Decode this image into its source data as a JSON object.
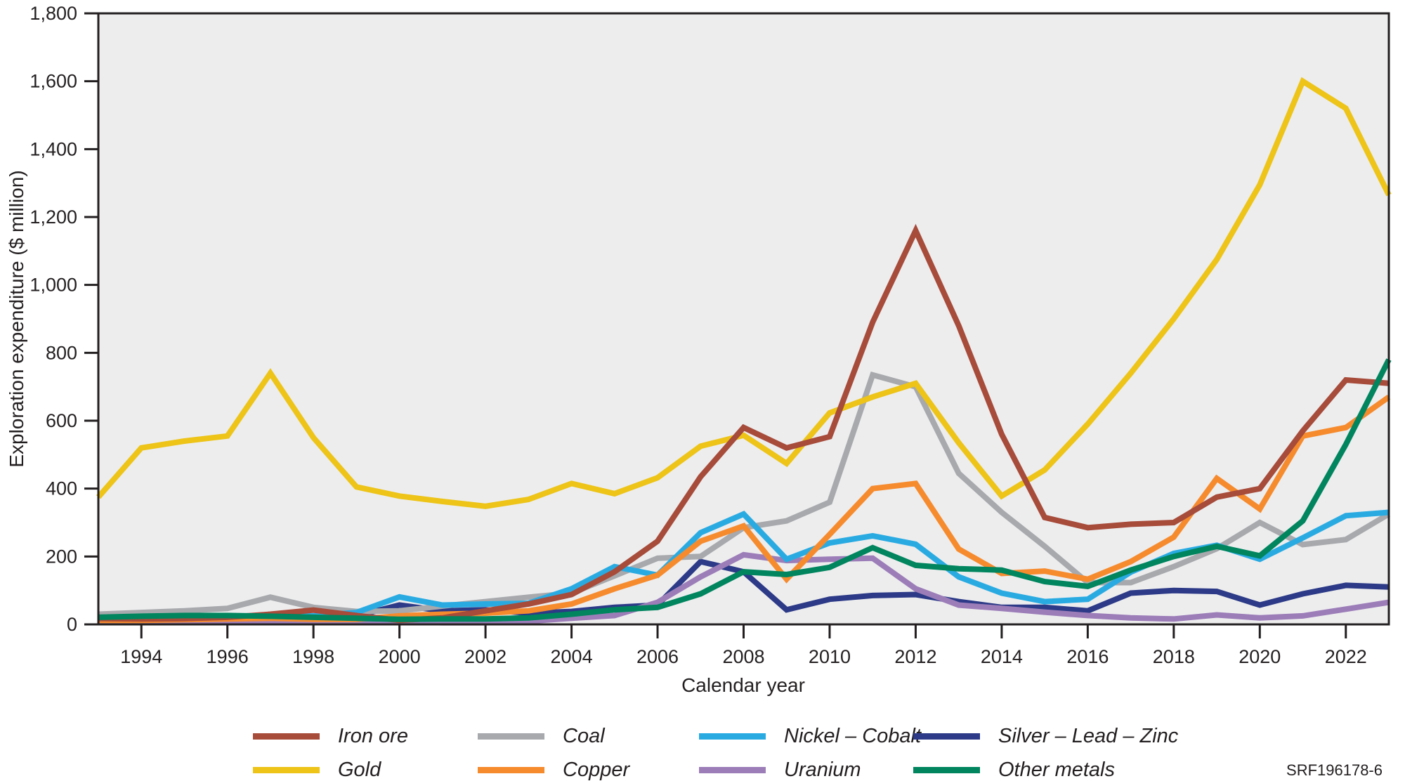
{
  "figure": {
    "ref_code": "SRF196178-6"
  },
  "chart_data": {
    "type": "line",
    "title": "",
    "xlabel": "Calendar year",
    "ylabel": "Exploration expenditure ($ million)",
    "x_range": [
      1993,
      2023
    ],
    "ylim": [
      0,
      1800
    ],
    "y_tick_step": 200,
    "x_ticks": [
      1994,
      1996,
      1998,
      2000,
      2002,
      2004,
      2006,
      2008,
      2010,
      2012,
      2014,
      2016,
      2018,
      2020,
      2022
    ],
    "grid": false,
    "legend_position": "bottom",
    "plot_bg": "#EDEDEE",
    "axis_color": "#231F20",
    "years": [
      1993,
      1994,
      1995,
      1996,
      1997,
      1998,
      1999,
      2000,
      2001,
      2002,
      2003,
      2004,
      2005,
      2006,
      2007,
      2008,
      2009,
      2010,
      2011,
      2012,
      2013,
      2014,
      2015,
      2016,
      2017,
      2018,
      2019,
      2020,
      2021,
      2022,
      2023
    ],
    "series": [
      {
        "name": "Iron ore",
        "color": "#A74B3A",
        "values": [
          17,
          16,
          17,
          21,
          30,
          42,
          26,
          12,
          19,
          40,
          60,
          88,
          155,
          245,
          435,
          580,
          520,
          553,
          890,
          1160,
          880,
          560,
          315,
          285,
          295,
          300,
          375,
          400,
          570,
          720,
          710
        ]
      },
      {
        "name": "Coal",
        "color": "#A7A9AC",
        "values": [
          30,
          35,
          40,
          47,
          80,
          50,
          38,
          40,
          54,
          67,
          80,
          92,
          143,
          195,
          200,
          285,
          305,
          360,
          735,
          700,
          445,
          330,
          230,
          123,
          123,
          170,
          223,
          300,
          235,
          250,
          325
        ]
      },
      {
        "name": "Nickel – Cobalt",
        "color": "#29ABE2",
        "values": [
          18,
          20,
          22,
          22,
          25,
          25,
          35,
          81,
          57,
          60,
          62,
          105,
          170,
          145,
          270,
          325,
          192,
          240,
          261,
          236,
          140,
          92,
          67,
          74,
          154,
          209,
          233,
          192,
          255,
          320,
          330
        ]
      },
      {
        "name": "Silver – Lead – Zinc",
        "color": "#2C3A87",
        "values": [
          15,
          14,
          13,
          15,
          16,
          18,
          25,
          57,
          40,
          43,
          33,
          38,
          50,
          57,
          185,
          155,
          43,
          74,
          85,
          88,
          67,
          50,
          50,
          40,
          92,
          100,
          97,
          57,
          90,
          115,
          110
        ]
      },
      {
        "name": "Gold",
        "color": "#EDC417",
        "values": [
          375,
          520,
          540,
          555,
          740,
          550,
          405,
          378,
          362,
          348,
          368,
          415,
          385,
          432,
          525,
          557,
          474,
          623,
          670,
          710,
          535,
          378,
          455,
          590,
          740,
          900,
          1075,
          1295,
          1600,
          1520,
          1265
        ]
      },
      {
        "name": "Copper",
        "color": "#F68B2E",
        "values": [
          12,
          12,
          14,
          16,
          18,
          15,
          15,
          25,
          30,
          33,
          40,
          60,
          105,
          145,
          245,
          290,
          133,
          265,
          400,
          415,
          222,
          150,
          157,
          133,
          185,
          257,
          430,
          340,
          555,
          580,
          670
        ]
      },
      {
        "name": "Uranium",
        "color": "#9C7DB8",
        "values": [
          9,
          7,
          9,
          10,
          10,
          9,
          8,
          8,
          5,
          5,
          9,
          18,
          26,
          65,
          140,
          205,
          188,
          192,
          195,
          105,
          57,
          47,
          36,
          26,
          19,
          16,
          28,
          19,
          25,
          45,
          65
        ]
      },
      {
        "name": "Other metals",
        "color": "#00855E",
        "values": [
          21,
          24,
          26,
          26,
          24,
          21,
          18,
          15,
          16,
          16,
          19,
          30,
          43,
          50,
          90,
          155,
          147,
          168,
          226,
          174,
          164,
          160,
          126,
          112,
          160,
          200,
          230,
          202,
          305,
          530,
          780
        ]
      }
    ],
    "draw_order": [
      3,
      6,
      1,
      2,
      5,
      4,
      0,
      7
    ]
  }
}
